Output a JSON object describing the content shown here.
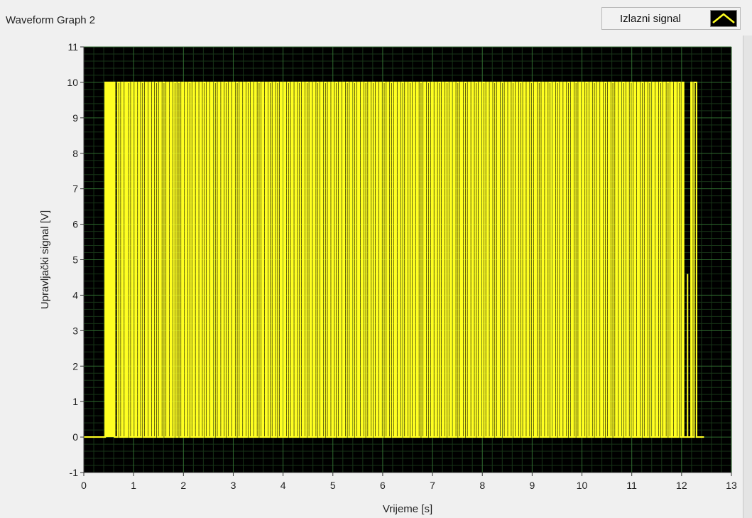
{
  "window": {
    "title": "Waveform Graph 2"
  },
  "legend": {
    "label": "Izlazni signal",
    "icon": "line-plot-icon"
  },
  "colors": {
    "plot_bg": "#000000",
    "grid_major": "#2f6b2f",
    "grid_minor": "#173417",
    "trace": "#ffff22",
    "frame": "#f0f0f0"
  },
  "chart_data": {
    "type": "line",
    "xlabel": "Vrijeme [s]",
    "ylabel": "Upravljački signal [V]",
    "xlim": [
      0,
      13
    ],
    "ylim": [
      -1,
      11
    ],
    "x_ticks": [
      0,
      1,
      2,
      3,
      4,
      5,
      6,
      7,
      8,
      9,
      10,
      11,
      12,
      13
    ],
    "y_ticks": [
      -1,
      0,
      1,
      2,
      3,
      4,
      5,
      6,
      7,
      8,
      9,
      10,
      11
    ],
    "grid": true,
    "minor_grid": true,
    "legend_position": "top-right",
    "series": [
      {
        "name": "Izlazni signal",
        "low": 0,
        "high": 10,
        "x_start": 0,
        "x_end": 12.45,
        "high_intervals": [
          [
            0.43,
            0.62
          ],
          [
            0.68,
            0.72
          ],
          [
            0.76,
            0.79
          ],
          [
            0.83,
            0.85
          ],
          [
            0.88,
            0.92
          ],
          [
            0.96,
            0.99
          ],
          [
            1.03,
            1.06
          ],
          [
            1.1,
            1.12
          ],
          [
            1.16,
            1.2
          ],
          [
            1.24,
            1.27
          ],
          [
            1.31,
            1.34
          ],
          [
            1.38,
            1.4
          ],
          [
            1.44,
            1.48
          ],
          [
            1.52,
            1.55
          ],
          [
            1.59,
            1.63
          ],
          [
            1.67,
            1.7
          ],
          [
            1.74,
            1.77
          ],
          [
            1.81,
            1.85
          ],
          [
            1.89,
            1.93
          ],
          [
            1.97,
            2.0
          ],
          [
            2.04,
            2.07
          ],
          [
            2.11,
            2.15
          ],
          [
            2.19,
            2.22
          ],
          [
            2.26,
            2.29
          ],
          [
            2.33,
            2.36
          ],
          [
            2.4,
            2.44
          ],
          [
            2.48,
            2.51
          ],
          [
            2.55,
            2.58
          ],
          [
            2.62,
            2.66
          ],
          [
            2.7,
            2.73
          ],
          [
            2.77,
            2.8
          ],
          [
            2.84,
            2.88
          ],
          [
            2.92,
            2.95
          ],
          [
            2.99,
            3.02
          ],
          [
            3.06,
            3.1
          ],
          [
            3.14,
            3.17
          ],
          [
            3.21,
            3.24
          ],
          [
            3.28,
            3.32
          ],
          [
            3.36,
            3.39
          ],
          [
            3.43,
            3.46
          ],
          [
            3.5,
            3.54
          ],
          [
            3.58,
            3.61
          ],
          [
            3.65,
            3.68
          ],
          [
            3.72,
            3.76
          ],
          [
            3.8,
            3.83
          ],
          [
            3.87,
            3.91
          ],
          [
            3.95,
            3.98
          ],
          [
            4.02,
            4.05
          ],
          [
            4.09,
            4.13
          ],
          [
            4.17,
            4.2
          ],
          [
            4.24,
            4.27
          ],
          [
            4.31,
            4.35
          ],
          [
            4.39,
            4.42
          ],
          [
            4.46,
            4.5
          ],
          [
            4.54,
            4.57
          ],
          [
            4.61,
            4.64
          ],
          [
            4.68,
            4.72
          ],
          [
            4.76,
            4.79
          ],
          [
            4.83,
            4.87
          ],
          [
            4.91,
            4.94
          ],
          [
            4.98,
            5.01
          ],
          [
            5.05,
            5.09
          ],
          [
            5.13,
            5.16
          ],
          [
            5.2,
            5.23
          ],
          [
            5.27,
            5.31
          ],
          [
            5.35,
            5.38
          ],
          [
            5.42,
            5.46
          ],
          [
            5.5,
            5.53
          ],
          [
            5.57,
            5.6
          ],
          [
            5.64,
            5.68
          ],
          [
            5.72,
            5.75
          ],
          [
            5.79,
            5.83
          ],
          [
            5.87,
            5.9
          ],
          [
            5.94,
            5.97
          ],
          [
            6.01,
            6.05
          ],
          [
            6.09,
            6.12
          ],
          [
            6.16,
            6.2
          ],
          [
            6.24,
            6.27
          ],
          [
            6.31,
            6.34
          ],
          [
            6.38,
            6.42
          ],
          [
            6.46,
            6.49
          ],
          [
            6.53,
            6.57
          ],
          [
            6.61,
            6.64
          ],
          [
            6.68,
            6.71
          ],
          [
            6.75,
            6.79
          ],
          [
            6.83,
            6.86
          ],
          [
            6.9,
            6.94
          ],
          [
            6.98,
            7.01
          ],
          [
            7.05,
            7.08
          ],
          [
            7.12,
            7.16
          ],
          [
            7.2,
            7.23
          ],
          [
            7.27,
            7.31
          ],
          [
            7.35,
            7.38
          ],
          [
            7.42,
            7.45
          ],
          [
            7.49,
            7.53
          ],
          [
            7.57,
            7.6
          ],
          [
            7.64,
            7.68
          ],
          [
            7.72,
            7.75
          ],
          [
            7.79,
            7.82
          ],
          [
            7.86,
            7.9
          ],
          [
            7.94,
            7.97
          ],
          [
            8.01,
            8.05
          ],
          [
            8.09,
            8.12
          ],
          [
            8.16,
            8.19
          ],
          [
            8.23,
            8.27
          ],
          [
            8.31,
            8.34
          ],
          [
            8.38,
            8.42
          ],
          [
            8.46,
            8.49
          ],
          [
            8.53,
            8.56
          ],
          [
            8.6,
            8.64
          ],
          [
            8.68,
            8.71
          ],
          [
            8.75,
            8.79
          ],
          [
            8.83,
            8.86
          ],
          [
            8.9,
            8.93
          ],
          [
            8.97,
            9.01
          ],
          [
            9.05,
            9.08
          ],
          [
            9.12,
            9.16
          ],
          [
            9.2,
            9.23
          ],
          [
            9.27,
            9.3
          ],
          [
            9.34,
            9.38
          ],
          [
            9.42,
            9.45
          ],
          [
            9.49,
            9.53
          ],
          [
            9.57,
            9.6
          ],
          [
            9.64,
            9.67
          ],
          [
            9.71,
            9.75
          ],
          [
            9.79,
            9.82
          ],
          [
            9.86,
            9.9
          ],
          [
            9.94,
            9.97
          ],
          [
            10.01,
            10.04
          ],
          [
            10.08,
            10.12
          ],
          [
            10.16,
            10.19
          ],
          [
            10.23,
            10.27
          ],
          [
            10.31,
            10.34
          ],
          [
            10.38,
            10.41
          ],
          [
            10.45,
            10.49
          ],
          [
            10.53,
            10.56
          ],
          [
            10.6,
            10.64
          ],
          [
            10.68,
            10.71
          ],
          [
            10.75,
            10.78
          ],
          [
            10.82,
            10.86
          ],
          [
            10.9,
            10.93
          ],
          [
            10.97,
            11.01
          ],
          [
            11.05,
            11.08
          ],
          [
            11.12,
            11.15
          ],
          [
            11.19,
            11.23
          ],
          [
            11.27,
            11.3
          ],
          [
            11.34,
            11.38
          ],
          [
            11.42,
            11.45
          ],
          [
            11.49,
            11.52
          ],
          [
            11.56,
            11.6
          ],
          [
            11.64,
            11.67
          ],
          [
            11.71,
            11.75
          ],
          [
            11.79,
            11.82
          ],
          [
            11.86,
            11.89
          ],
          [
            11.93,
            11.97
          ],
          [
            12.01,
            12.04
          ],
          [
            12.19,
            12.21
          ],
          [
            12.25,
            12.3
          ]
        ],
        "spikes": [
          {
            "x": 12.12,
            "y": 4.6
          }
        ]
      }
    ]
  }
}
